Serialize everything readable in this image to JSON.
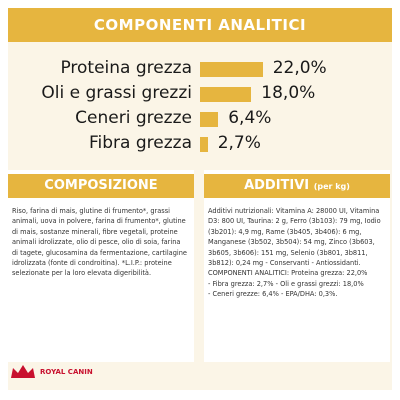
{
  "chart_data": {
    "type": "hbar",
    "title": "COMPONENTI ANALITICI",
    "categories": [
      "Proteina grezza",
      "Oli e grassi grezzi",
      "Ceneri grezze",
      "Fibra grezza"
    ],
    "values": [
      22.0,
      18.0,
      6.4,
      2.7
    ],
    "value_labels": [
      "22,0%",
      "18,0%",
      "6,4%",
      "2,7%"
    ],
    "color": "#e6b53f"
  },
  "composition": {
    "title": "COMPOSIZIONE",
    "lines": [
      "Riso, farina di mais, glutine di frumento*, grassi",
      "animali, uova in polvere, farina di frumento*, glutine",
      "di mais, sostanze minerali, fibre vegetali, proteine",
      "animali idrolizzate, olio di pesce, olio di soia, farina",
      "di tagete, glucosamina da fermentazione, cartilagine",
      "idrolizzata (fonte di condroitina). *L.I.P.: proteine",
      "selezionate per la loro elevata digeribilità."
    ]
  },
  "additives": {
    "title": "ADDITIVI",
    "unit": "(per kg)",
    "lines": [
      "Additivi nutrizionali: Vitamina A: 28000 UI, Vitamina",
      "D3: 800 UI, Taurina: 2 g, Ferro (3b103): 79 mg, Iodio",
      "(3b201): 4,9 mg, Rame (3b405, 3b406): 6 mg,",
      "Manganese (3b502, 3b504): 54 mg, Zinco (3b603,",
      "3b605, 3b606): 151 mg, Selenio (3b801, 3b811,",
      "3b812): 0,24 mg - Conservanti - Antiossidanti.",
      "COMPONENTI ANALITICI: Proteina grezza: 22,0%",
      "- Fibra grezza: 2,7% - Oli e grassi grezzi: 18,0%",
      "- Ceneri grezze: 6,4% - EPA/DHA: 0,3%."
    ]
  },
  "logo": "ROYAL CANIN"
}
